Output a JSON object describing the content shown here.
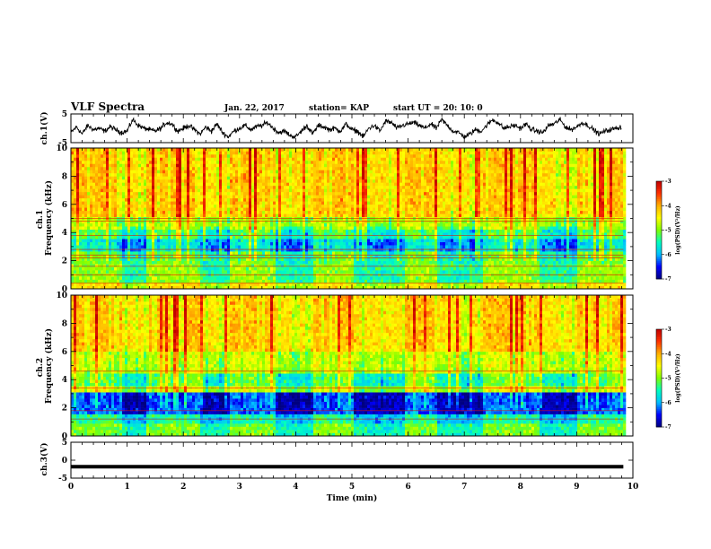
{
  "header": {
    "title": "VLF Spectra",
    "date": "Jan. 22, 2017",
    "station": "station= KAP",
    "start": "start UT =  20: 10: 0"
  },
  "colors": {
    "colormap": [
      "#000080",
      "#0000ff",
      "#00bfff",
      "#00ffc0",
      "#7fff00",
      "#ffff00",
      "#ffb000",
      "#ff3000",
      "#c00000"
    ],
    "trace": "#000000"
  },
  "chart_data": [
    {
      "type": "line",
      "panel": "ch1-waveform",
      "ylabel": "ch.1(V)",
      "ylim": [
        -5,
        5
      ],
      "yticks": [
        5,
        -5
      ],
      "xlim": [
        0,
        10
      ],
      "x_extent": 9.83,
      "note_values": "approx. waveform envelope",
      "x": [
        0.0,
        0.1,
        0.2,
        0.3,
        0.4,
        0.5,
        0.6,
        0.7,
        0.8,
        0.9,
        1.0,
        1.1,
        1.2,
        1.3,
        1.4,
        1.5,
        1.6,
        1.7,
        1.8,
        1.9,
        2.0,
        2.1,
        2.2,
        2.3,
        2.4,
        2.5,
        2.6,
        2.7,
        2.8,
        2.9,
        3.0,
        3.1,
        3.2,
        3.3,
        3.4,
        3.5,
        3.6,
        3.7,
        3.8,
        3.9,
        4.0,
        4.1,
        4.2,
        4.3,
        4.4,
        4.5,
        4.6,
        4.7,
        4.8,
        4.9,
        5.0,
        5.1,
        5.2,
        5.3,
        5.4,
        5.5,
        5.6,
        5.7,
        5.8,
        5.9,
        6.0,
        6.1,
        6.2,
        6.3,
        6.4,
        6.5,
        6.6,
        6.7,
        6.8,
        6.9,
        7.0,
        7.1,
        7.2,
        7.3,
        7.4,
        7.5,
        7.6,
        7.7,
        7.8,
        7.9,
        8.0,
        8.1,
        8.2,
        8.3,
        8.4,
        8.5,
        8.6,
        8.7,
        8.8,
        8.9,
        9.0,
        9.1,
        9.2,
        9.3,
        9.4,
        9.5,
        9.6,
        9.7,
        9.8
      ],
      "y": [
        -1.5,
        0.5,
        -2.0,
        1.0,
        -0.5,
        0.0,
        -1.0,
        0.5,
        -0.5,
        -1.5,
        -1.0,
        3.0,
        1.0,
        0.0,
        -0.5,
        -1.0,
        0.0,
        2.0,
        1.5,
        -1.0,
        0.0,
        1.0,
        -0.5,
        -2.0,
        0.5,
        -1.0,
        1.5,
        -1.5,
        -3.0,
        -1.0,
        0.0,
        1.0,
        -0.5,
        0.5,
        1.0,
        2.0,
        0.0,
        -1.5,
        -1.0,
        -2.5,
        -3.0,
        -1.0,
        1.0,
        -2.0,
        1.0,
        0.5,
        -0.5,
        0.0,
        -1.0,
        1.5,
        -0.5,
        -1.0,
        -3.0,
        0.0,
        1.0,
        -1.0,
        2.5,
        2.0,
        0.0,
        1.0,
        1.5,
        2.0,
        1.0,
        0.0,
        1.5,
        0.0,
        3.0,
        1.0,
        -1.0,
        -1.5,
        -3.0,
        -2.0,
        -0.5,
        -1.0,
        1.0,
        3.0,
        2.0,
        0.0,
        0.5,
        1.0,
        0.0,
        1.5,
        -0.5,
        -1.0,
        -1.5,
        1.0,
        1.5,
        3.0,
        0.5,
        -0.5,
        0.5,
        2.0,
        1.0,
        -0.5,
        -2.0,
        -1.0,
        -0.5,
        0.0,
        0.5
      ]
    },
    {
      "type": "heatmap",
      "panel": "ch1-spectrogram",
      "ylabel": "ch.1 Frequency (kHz)",
      "ylim": [
        0,
        10
      ],
      "yticks": [
        0,
        2,
        4,
        6,
        8,
        10
      ],
      "xlim": [
        0,
        10
      ],
      "x_extent": 9.83,
      "colorbar": {
        "label": "log(PSD)(V²/Hz)",
        "range": [
          -7,
          -3
        ],
        "ticks": [
          -3,
          -4,
          -5,
          -6,
          -7
        ]
      },
      "note_values": "approx. mean log(PSD) per frequency band; strong lines at 0.4, 1.0, 1.6, 2.2, 2.4, 2.8, 3.8, 4.8, 5.0 kHz",
      "freq_bands": [
        {
          "f": [
            0.0,
            0.5
          ],
          "level": -4.3
        },
        {
          "f": [
            0.5,
            1.8
          ],
          "level": -4.9
        },
        {
          "f": [
            1.8,
            2.6
          ],
          "level": -5.0
        },
        {
          "f": [
            2.6,
            3.6
          ],
          "level": -5.6
        },
        {
          "f": [
            3.6,
            4.2
          ],
          "level": -5.1
        },
        {
          "f": [
            4.2,
            5.0
          ],
          "level": -4.7
        },
        {
          "f": [
            5.0,
            10.0
          ],
          "level": -4.1
        }
      ],
      "lines_khz": [
        0.4,
        1.0,
        1.6,
        2.2,
        2.4,
        2.8,
        3.8,
        4.8,
        5.0
      ],
      "quiet_intervals_min": [
        [
          0.9,
          1.3
        ],
        [
          2.3,
          2.8
        ],
        [
          3.6,
          4.3
        ],
        [
          5.0,
          5.9
        ],
        [
          6.5,
          7.3
        ],
        [
          8.3,
          9.0
        ]
      ]
    },
    {
      "type": "heatmap",
      "panel": "ch2-spectrogram",
      "ylabel": "ch.2 Frequency (kHz)",
      "ylim": [
        0,
        10
      ],
      "yticks": [
        0,
        2,
        4,
        6,
        8,
        10
      ],
      "xlim": [
        0,
        10
      ],
      "x_extent": 9.83,
      "colorbar": {
        "label": "log(PSD)(V²/Hz)",
        "range": [
          -7,
          -3
        ],
        "ticks": [
          -3,
          -4,
          -5,
          -6,
          -7
        ]
      },
      "note_values": "approx. mean log(PSD) per frequency band; strong lines at 1.2, 1.8, 3.4, 4.6 kHz",
      "freq_bands": [
        {
          "f": [
            0.0,
            1.0
          ],
          "level": -5.0
        },
        {
          "f": [
            1.0,
            1.6
          ],
          "level": -5.4
        },
        {
          "f": [
            1.6,
            3.0
          ],
          "level": -6.2
        },
        {
          "f": [
            3.0,
            3.6
          ],
          "level": -4.5
        },
        {
          "f": [
            3.6,
            4.4
          ],
          "level": -5.0
        },
        {
          "f": [
            4.4,
            6.0
          ],
          "level": -4.6
        },
        {
          "f": [
            6.0,
            10.0
          ],
          "level": -4.1
        }
      ],
      "lines_khz": [
        1.2,
        1.8,
        3.4,
        4.6
      ],
      "quiet_intervals_min": [
        [
          0.9,
          1.3
        ],
        [
          2.3,
          2.8
        ],
        [
          3.6,
          4.3
        ],
        [
          5.0,
          5.9
        ],
        [
          6.5,
          7.3
        ],
        [
          8.3,
          9.0
        ]
      ]
    },
    {
      "type": "line",
      "panel": "ch3-waveform",
      "ylabel": "ch.3(V)",
      "ylim": [
        -5,
        5
      ],
      "yticks": [
        5,
        0,
        -5
      ],
      "xlim": [
        0,
        10
      ],
      "x_extent": 9.83,
      "x": [
        0,
        9.83
      ],
      "y": [
        -1.8,
        -1.8
      ],
      "xlabel": "Time (min)",
      "xticks": [
        0,
        1,
        2,
        3,
        4,
        5,
        6,
        7,
        8,
        9,
        10
      ]
    }
  ]
}
